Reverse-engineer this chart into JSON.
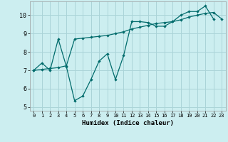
{
  "xlabel": "Humidex (Indice chaleur)",
  "bg_color": "#cceef0",
  "grid_color": "#aad4d8",
  "line_color": "#006b6b",
  "xlim": [
    -0.5,
    23.5
  ],
  "ylim": [
    4.8,
    10.75
  ],
  "yticks": [
    5,
    6,
    7,
    8,
    9,
    10
  ],
  "xticks": [
    0,
    1,
    2,
    3,
    4,
    5,
    6,
    7,
    8,
    9,
    10,
    11,
    12,
    13,
    14,
    15,
    16,
    17,
    18,
    19,
    20,
    21,
    22,
    23
  ],
  "line1_x": [
    0,
    1,
    2,
    3,
    4,
    5,
    6,
    7,
    8,
    9,
    10,
    11,
    12,
    13,
    14,
    15,
    16,
    17,
    18,
    19,
    20,
    21,
    22
  ],
  "line1_y": [
    7.0,
    7.4,
    7.0,
    8.7,
    7.2,
    5.35,
    5.6,
    6.5,
    7.5,
    7.9,
    6.5,
    7.8,
    9.65,
    9.65,
    9.6,
    9.4,
    9.4,
    9.65,
    10.0,
    10.2,
    10.2,
    10.5,
    9.8
  ],
  "line2_x": [
    0,
    1,
    2,
    3,
    4,
    5,
    6,
    7,
    8,
    9,
    10,
    11,
    12,
    13,
    14,
    15,
    16,
    17,
    18,
    19,
    20,
    21,
    22,
    23
  ],
  "line2_y": [
    7.0,
    7.05,
    7.1,
    7.15,
    7.25,
    8.7,
    8.75,
    8.8,
    8.85,
    8.9,
    9.0,
    9.1,
    9.25,
    9.35,
    9.45,
    9.55,
    9.6,
    9.65,
    9.75,
    9.9,
    10.0,
    10.1,
    10.15,
    9.8
  ]
}
